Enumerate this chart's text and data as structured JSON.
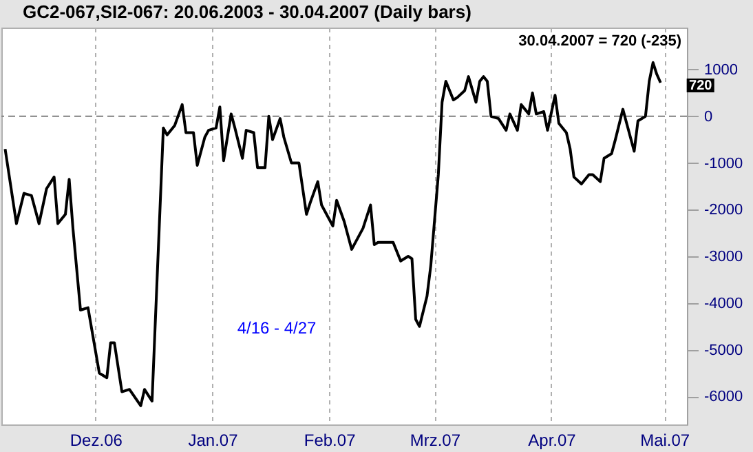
{
  "chart_data": {
    "type": "line",
    "title": "GC2-067,SI2-067:  20.06.2003 - 30.04.2007  (Daily bars)",
    "x": [
      "2006-11-07",
      "2006-11-10",
      "2006-11-12",
      "2006-11-14",
      "2006-11-16",
      "2006-11-18",
      "2006-11-20",
      "2006-11-21",
      "2006-11-23",
      "2006-11-24",
      "2006-11-25",
      "2006-11-27",
      "2006-11-29",
      "2006-12-02",
      "2006-12-04",
      "2006-12-05",
      "2006-12-06",
      "2006-12-08",
      "2006-12-10",
      "2006-12-13",
      "2006-12-14",
      "2006-12-16",
      "2006-12-19",
      "2006-12-20",
      "2006-12-22",
      "2006-12-24",
      "2006-12-25",
      "2006-12-27",
      "2006-12-28",
      "2006-12-30",
      "2006-12-31",
      "2007-01-02",
      "2007-01-03",
      "2007-01-04",
      "2007-01-06",
      "2007-01-07",
      "2007-01-09",
      "2007-01-10",
      "2007-01-12",
      "2007-01-13",
      "2007-01-15",
      "2007-01-16",
      "2007-01-17",
      "2007-01-19",
      "2007-01-20",
      "2007-01-22",
      "2007-01-24",
      "2007-01-26",
      "2007-01-27",
      "2007-01-29",
      "2007-01-30",
      "2007-02-02",
      "2007-02-03",
      "2007-02-05",
      "2007-02-07",
      "2007-02-10",
      "2007-02-12",
      "2007-02-13",
      "2007-02-14",
      "2007-02-17",
      "2007-02-18",
      "2007-02-20",
      "2007-02-22",
      "2007-02-23",
      "2007-02-24",
      "2007-02-25",
      "2007-02-27",
      "2007-02-28",
      "2007-03-02",
      "2007-03-03",
      "2007-03-04",
      "2007-03-06",
      "2007-03-07",
      "2007-03-09",
      "2007-03-10",
      "2007-03-12",
      "2007-03-13",
      "2007-03-14",
      "2007-03-15",
      "2007-03-16",
      "2007-03-18",
      "2007-03-20",
      "2007-03-21",
      "2007-03-23",
      "2007-03-24",
      "2007-03-26",
      "2007-03-27",
      "2007-03-28",
      "2007-03-30",
      "2007-03-31",
      "2007-04-02",
      "2007-04-03",
      "2007-04-05",
      "2007-04-06",
      "2007-04-07",
      "2007-04-09",
      "2007-04-11",
      "2007-04-12",
      "2007-04-14",
      "2007-04-15",
      "2007-04-17",
      "2007-04-18",
      "2007-04-20",
      "2007-04-21",
      "2007-04-23",
      "2007-04-24",
      "2007-04-26",
      "2007-04-27",
      "2007-04-28",
      "2007-04-29",
      "2007-04-30"
    ],
    "series": [
      {
        "color": "#000000",
        "values": [
          -700,
          -2300,
          -1650,
          -1700,
          -2300,
          -1550,
          -1300,
          -2300,
          -2100,
          -1350,
          -2400,
          -4150,
          -4100,
          -5500,
          -5600,
          -4850,
          -4850,
          -5900,
          -5850,
          -6200,
          -5850,
          -6100,
          -250,
          -400,
          -200,
          250,
          -350,
          -350,
          -1050,
          -450,
          -300,
          -250,
          200,
          -950,
          50,
          -250,
          -900,
          -300,
          -350,
          -1100,
          -1100,
          0,
          -500,
          -50,
          -450,
          -1000,
          -1000,
          -2100,
          -1850,
          -1400,
          -1900,
          -2350,
          -1800,
          -2250,
          -2850,
          -2400,
          -1900,
          -2750,
          -2700,
          -2700,
          -2700,
          -3100,
          -3000,
          -3050,
          -4350,
          -4500,
          -3850,
          -3200,
          -1250,
          300,
          750,
          350,
          400,
          550,
          850,
          300,
          750,
          850,
          750,
          0,
          -50,
          -300,
          50,
          -300,
          250,
          50,
          500,
          50,
          100,
          -300,
          450,
          -150,
          -350,
          -700,
          -1300,
          -1450,
          -1250,
          -1250,
          -1400,
          -900,
          -800,
          -500,
          150,
          -150,
          -750,
          -100,
          0,
          750,
          1150,
          900,
          720
        ]
      }
    ],
    "xlim": [
      "2006-11-06",
      "2007-05-07"
    ],
    "xticks": [
      {
        "value": "2006-12-01",
        "label": "Dez.06"
      },
      {
        "value": "2007-01-01",
        "label": "Jan.07"
      },
      {
        "value": "2007-02-01",
        "label": "Feb.07"
      },
      {
        "value": "2007-03-01",
        "label": "Mrz.07"
      },
      {
        "value": "2007-04-01",
        "label": "Apr.07"
      },
      {
        "value": "2007-05-01",
        "label": "Mai.07"
      }
    ],
    "ylim": [
      -6600,
      1900
    ],
    "yticks": [
      -6000,
      -5000,
      -4000,
      -3000,
      -2000,
      -1000,
      0,
      1000
    ],
    "grid": "x",
    "marker": "none",
    "line_style": "solid",
    "ref_lines": [
      {
        "axis": "y",
        "value": 0,
        "color": "#808080",
        "line_style": "dashed"
      }
    ],
    "annotations": [
      "30.04.2007 = 720 (-235)",
      {
        "text": "720",
        "x": "2007-04-30",
        "y": 720
      },
      "4/16 - 4/27"
    ]
  }
}
